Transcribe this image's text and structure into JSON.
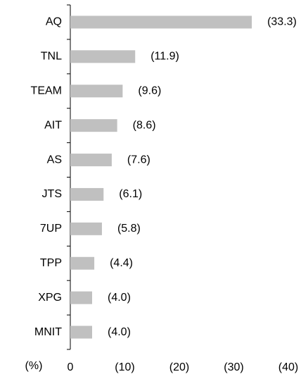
{
  "chart_data": {
    "type": "barh",
    "categories": [
      "AQ",
      "TNL",
      "TEAM",
      "AIT",
      "AS",
      "JTS",
      "7UP",
      "TPP",
      "XPG",
      "MNIT"
    ],
    "values": [
      -33.3,
      -11.9,
      -9.6,
      -8.6,
      -7.6,
      -6.1,
      -5.8,
      -4.4,
      -4.0,
      -4.0
    ],
    "value_labels": [
      "(33.3)",
      "(11.9)",
      "(9.6)",
      "(8.6)",
      "(7.6)",
      "(6.1)",
      "(5.8)",
      "(4.4)",
      "(4.0)",
      "(4.0)"
    ],
    "color": "#c0c0c0",
    "xlabel": "(%)",
    "xlim": [
      0,
      -40
    ],
    "xticks": [
      0,
      {
        "value": -10,
        "label": "(10)"
      },
      {
        "value": -20,
        "label": "(20)"
      },
      {
        "value": -30,
        "label": "(30)"
      },
      {
        "value": -40,
        "label": "(40)"
      }
    ]
  }
}
